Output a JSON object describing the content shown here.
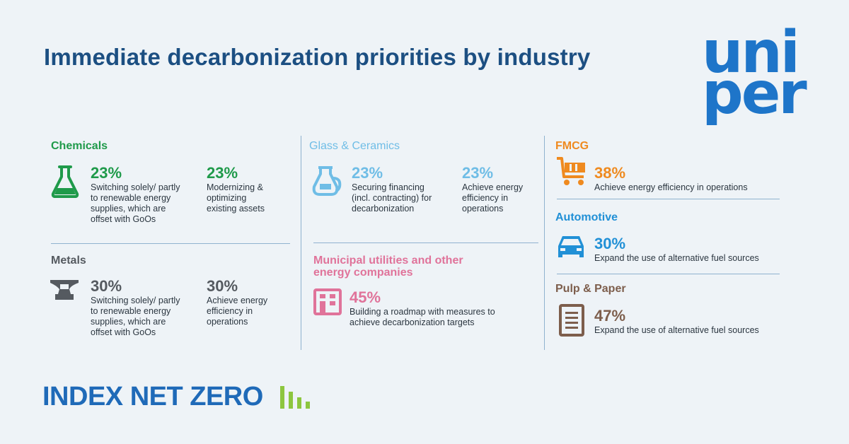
{
  "title": "Immediate decarbonization priorities by industry",
  "logo": {
    "line1": "uni",
    "line2": "per",
    "color": "#1e75c9"
  },
  "footer": {
    "text": "INDEX NET ZERO",
    "bars_color": "#8dc63f"
  },
  "sections": {
    "chemicals": {
      "name": "Chemicals",
      "color": "#1f9a4a",
      "icon": "flask-icon",
      "items": [
        {
          "pct": "23%",
          "desc": "Switching solely/ partly to renewable energy supplies, which are offset with GoOs"
        },
        {
          "pct": "23%",
          "desc": "Modernizing & optimizing existing assets"
        }
      ]
    },
    "metals": {
      "name": "Metals",
      "color": "#555a60",
      "icon": "anvil-icon",
      "items": [
        {
          "pct": "30%",
          "desc": "Switching solely/ partly to renewable energy supplies, which are offset with GoOs"
        },
        {
          "pct": "30%",
          "desc": "Achieve energy efficiency in operations"
        }
      ]
    },
    "glass": {
      "name": "Glass & Ceramics",
      "color": "#6fbde6",
      "icon": "glass-jug-icon",
      "items": [
        {
          "pct": "23%",
          "desc": "Securing financing (incl. contracting) for decarbonization"
        },
        {
          "pct": "23%",
          "desc": "Achieve energy efficiency in operations"
        }
      ]
    },
    "municipal": {
      "name": "Municipal utilities and other energy companies",
      "color": "#e0739a",
      "icon": "building-icon",
      "items": [
        {
          "pct": "45%",
          "desc": "Building a roadmap with measures to achieve decarbonization targets"
        }
      ]
    },
    "fmcg": {
      "name": "FMCG",
      "color": "#ef8a1f",
      "icon": "shopping-cart-icon",
      "items": [
        {
          "pct": "38%",
          "desc": "Achieve energy efficiency in operations"
        }
      ]
    },
    "automotive": {
      "name": "Automotive",
      "color": "#2190d6",
      "icon": "car-icon",
      "items": [
        {
          "pct": "30%",
          "desc": "Expand the use of alternative fuel sources"
        }
      ]
    },
    "pulp": {
      "name": "Pulp & Paper",
      "color": "#7d5e4c",
      "icon": "paper-document-icon",
      "items": [
        {
          "pct": "47%",
          "desc": "Expand the use of alternative fuel sources"
        }
      ]
    }
  }
}
